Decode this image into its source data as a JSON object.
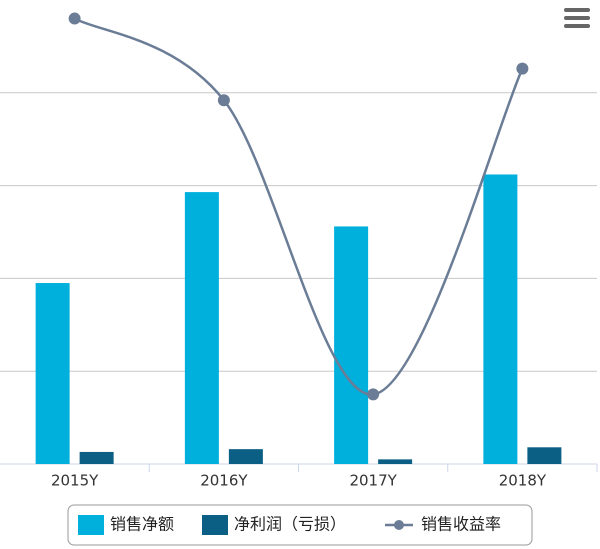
{
  "chart_data": {
    "type": "bar",
    "categories": [
      "2015Y",
      "2016Y",
      "2017Y",
      "2018Y"
    ],
    "series": [
      {
        "name": "销售净额",
        "type": "bar",
        "color": "#00b0dc",
        "values": [
          1.95,
          2.93,
          2.56,
          3.12
        ]
      },
      {
        "name": "净利润（亏损）",
        "type": "bar",
        "color": "#0b5f85",
        "values": [
          0.13,
          0.16,
          0.05,
          0.18
        ]
      },
      {
        "name": "销售收益率",
        "type": "line",
        "color": "#6b7d96",
        "values": [
          4.8,
          3.92,
          0.75,
          4.26
        ]
      }
    ],
    "ylim": [
      0,
      5
    ],
    "yticks": [
      0,
      1,
      2,
      3,
      4
    ],
    "grid": true
  }
}
